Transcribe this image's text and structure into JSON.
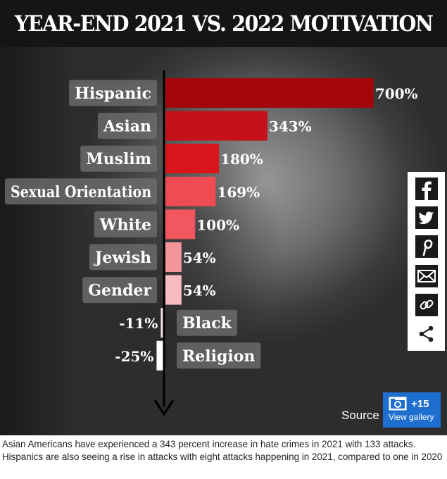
{
  "header": {
    "title": "YEAR-END 2021 VS. 2022 MOTIVATION"
  },
  "chart_data": {
    "type": "bar",
    "orientation": "horizontal",
    "title": "YEAR-END 2021 VS. 2022 MOTIVATION",
    "categories": [
      "Hispanic",
      "Asian",
      "Muslim",
      "Sexual Orientation",
      "White",
      "Jewish",
      "Gender",
      "Black",
      "Religion"
    ],
    "values": [
      700,
      343,
      180,
      169,
      100,
      54,
      54,
      -11,
      -25
    ],
    "value_labels": [
      "700%",
      "343%",
      "180%",
      "169%",
      "100%",
      "54%",
      "54%",
      "-11%",
      "-25%"
    ],
    "bar_colors": [
      "#a3070c",
      "#c4111a",
      "#d9151c",
      "#f04a52",
      "#f2565e",
      "#f3959b",
      "#f6bcc0",
      "#f7dcdd",
      "#ffffff"
    ],
    "unit": "%"
  },
  "source_label": "Source",
  "gallery": {
    "count": "+15",
    "label": "View gallery"
  },
  "share": [
    "facebook-icon",
    "twitter-icon",
    "pinterest-icon",
    "email-icon",
    "link-icon",
    "share-icon"
  ],
  "caption": "Asian Americans have experienced a 343 percent increase in hate crimes in 2021 with 133 attacks. Hispanics are also seeing a rise in attacks with eight attacks happening in 2021, compared to one in 2020"
}
